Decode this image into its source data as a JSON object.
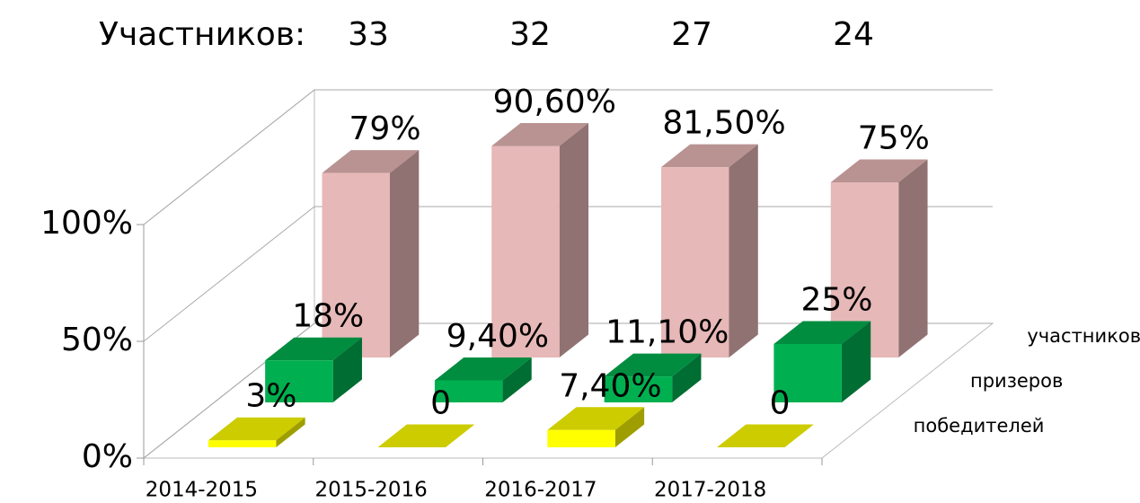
{
  "chart_data": {
    "type": "bar3d",
    "header_label": "Участников:",
    "header_values": [
      33,
      32,
      27,
      24
    ],
    "categories": [
      "2014-2015",
      "2015-2016",
      "2016-2017",
      "2017-2018"
    ],
    "series": [
      {
        "name": "победителей",
        "color": "#ffff00",
        "values": [
          3,
          0,
          7.4,
          0
        ],
        "value_labels": [
          "3%",
          "0",
          "7,40%",
          "0"
        ]
      },
      {
        "name": "призеров",
        "color": "#00b050",
        "values": [
          18,
          9.4,
          11.1,
          25
        ],
        "value_labels": [
          "18%",
          "9,40%",
          "11,10%",
          "25%"
        ]
      },
      {
        "name": "участников",
        "color": "#e6b8b7",
        "values": [
          79,
          90.6,
          81.5,
          75
        ],
        "value_labels": [
          "79%",
          "90,60%",
          "81,50%",
          "75%"
        ]
      }
    ],
    "ylim": [
      0,
      100
    ],
    "yticks": [
      {
        "value": 0,
        "label": "0%"
      },
      {
        "value": 50,
        "label": "50%"
      },
      {
        "value": 100,
        "label": "100%"
      }
    ],
    "grid": true
  }
}
